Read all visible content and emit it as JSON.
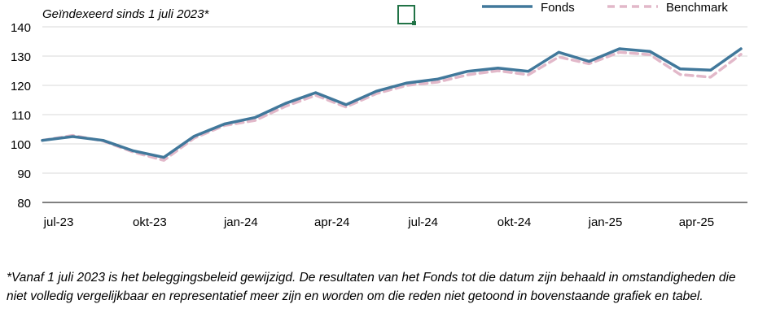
{
  "footnote": "*Vanaf 1 juli 2023 is het beleggingsbeleid gewijzigd. De resultaten van het Fonds tot die datum zijn behaald in omstandigheden die niet volledig vergelijkbaar en representatief meer zijn en worden om die reden niet getoond in bovenstaande grafiek en tabel.",
  "chart_data": {
    "type": "line",
    "subtitle": "Geïndexeerd sinds 1 juli 2023*",
    "ylim": [
      80,
      140
    ],
    "yticks": [
      80,
      90,
      100,
      110,
      120,
      130,
      140
    ],
    "grid": true,
    "legend_position": "top-right",
    "x": [
      "2023-07-01",
      "2023-07-31",
      "2023-08-31",
      "2023-09-30",
      "2023-10-31",
      "2023-11-30",
      "2023-12-31",
      "2024-01-31",
      "2024-02-29",
      "2024-03-31",
      "2024-04-30",
      "2024-05-31",
      "2024-06-30",
      "2024-07-31",
      "2024-08-31",
      "2024-09-30",
      "2024-10-31",
      "2024-11-30",
      "2024-12-31",
      "2025-01-31",
      "2025-02-28",
      "2025-03-31",
      "2025-04-30",
      "2025-05-31"
    ],
    "xtick_labels": [
      {
        "index": 0,
        "label": "jul-23"
      },
      {
        "index": 3,
        "label": "okt-23"
      },
      {
        "index": 6,
        "label": "jan-24"
      },
      {
        "index": 9,
        "label": "apr-24"
      },
      {
        "index": 12,
        "label": "jul-24"
      },
      {
        "index": 15,
        "label": "okt-24"
      },
      {
        "index": 18,
        "label": "jan-25"
      },
      {
        "index": 21,
        "label": "apr-25"
      }
    ],
    "series": [
      {
        "name": "Fonds",
        "color": "#41789B",
        "style": "solid",
        "values": [
          101.2,
          102.5,
          101.2,
          97.6,
          95.4,
          102.6,
          106.8,
          109.0,
          113.8,
          117.5,
          113.4,
          118.0,
          120.8,
          122.1,
          124.8,
          125.9,
          124.8,
          131.3,
          128.2,
          132.5,
          131.6,
          125.6,
          125.2,
          132.5
        ]
      },
      {
        "name": "Benchmark",
        "color": "#E2B8C9",
        "style": "dashed",
        "values": [
          101.2,
          102.9,
          101.0,
          97.2,
          94.4,
          102.0,
          106.3,
          108.0,
          112.8,
          116.6,
          112.6,
          117.2,
          120.0,
          121.1,
          123.6,
          125.0,
          123.6,
          129.7,
          127.4,
          131.3,
          130.5,
          123.7,
          122.8,
          130.6
        ]
      }
    ]
  }
}
